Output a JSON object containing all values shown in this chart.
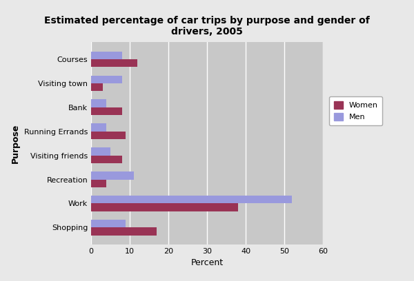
{
  "title": "Estimated percentage of car trips by purpose and gender of\ndrivers, 2005",
  "categories": [
    "Courses",
    "Visiting town",
    "Bank",
    "Running Errands",
    "Visiting friends",
    "Recreation",
    "Work",
    "Shopping"
  ],
  "women": [
    12,
    3,
    8,
    9,
    8,
    4,
    38,
    17
  ],
  "men": [
    8,
    8,
    4,
    4,
    5,
    11,
    52,
    9
  ],
  "women_color": "#993355",
  "men_color": "#9999DD",
  "xlabel": "Percent",
  "ylabel": "Purpose",
  "xlim": [
    0,
    60
  ],
  "xticks": [
    0,
    10,
    20,
    30,
    40,
    50,
    60
  ],
  "plot_bg_color": "#C8C8C8",
  "fig_bg_color": "#E8E8E8",
  "title_fontsize": 10,
  "axis_label_fontsize": 9,
  "tick_fontsize": 8,
  "legend_fontsize": 8,
  "bar_height": 0.32
}
